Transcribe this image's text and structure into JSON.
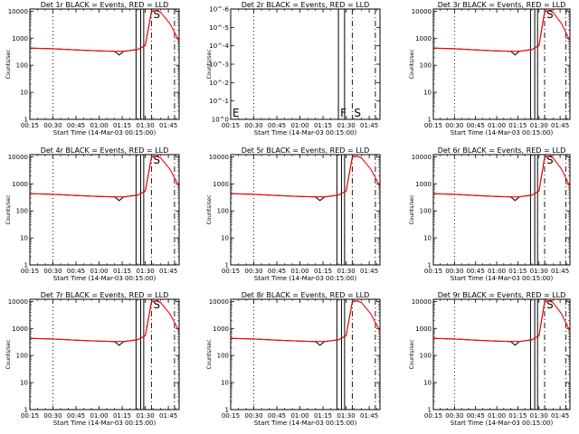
{
  "figure": {
    "time_tick_labels": [
      "00:15",
      "00:30",
      "00:45",
      "01:00",
      "01:15",
      "01:30",
      "01:45"
    ],
    "xlabel": "Start Time (14-Mar-03 00:15:00)",
    "ylabel": "Counts/sec",
    "log_tick_labels": [
      "1",
      "10",
      "100",
      "1000",
      "10000"
    ],
    "colors": {
      "events": "#000000",
      "lld": "#ff0000"
    }
  },
  "chart_data": [
    {
      "type": "line",
      "panel": "det1r",
      "title": "Det 1r BLACK = Events, RED = LLD",
      "xlabel": "Start Time (14-Mar-03 00:15:00)",
      "ylabel": "Counts/sec",
      "xlim": [
        "00:15",
        "01:52"
      ],
      "ylim": [
        1,
        12000
      ],
      "yscale": "log",
      "x": [
        "00:15",
        "00:30",
        "00:45",
        "01:00",
        "01:10",
        "01:13",
        "01:16",
        "01:25",
        "01:30",
        "01:34",
        "01:37",
        "01:40",
        "01:46",
        "01:52"
      ],
      "series": [
        {
          "name": "Events",
          "values": [
            430,
            410,
            370,
            340,
            330,
            240,
            330,
            380,
            540,
            9500,
            10500,
            9000,
            null,
            null
          ]
        },
        {
          "name": "LLD",
          "values": [
            430,
            410,
            370,
            340,
            330,
            330,
            330,
            380,
            540,
            9500,
            10500,
            9000,
            3500,
            800
          ]
        }
      ],
      "markers": [
        {
          "label": "",
          "time": "00:30",
          "style": "dotted"
        },
        {
          "label": "",
          "time": "01:24",
          "style": "solid"
        },
        {
          "label": "",
          "time": "01:27",
          "style": "solid"
        },
        {
          "label": "",
          "time": "01:29",
          "style": "solid"
        },
        {
          "label": "S",
          "time": "01:34",
          "style": "dashdot"
        },
        {
          "label": "",
          "time": "01:49",
          "style": "dashdot"
        }
      ]
    },
    {
      "type": "line",
      "panel": "det2r",
      "title": "Det 2r BLACK = Events, RED = LLD",
      "xlabel": "Start Time (14-Mar-03 00:15:00)",
      "ylabel": "Counts/sec",
      "xlim": [
        "00:15",
        "01:52"
      ],
      "ylim": [
        1,
        1e-06
      ],
      "y_tick_labels": [
        "10^0",
        "10^-1",
        "10^-2",
        "10^-3",
        "10^-4",
        "10^-5",
        "10^-6"
      ],
      "x": [],
      "series": [],
      "markers": [
        {
          "label": "E",
          "time": "00:15",
          "style": "none"
        },
        {
          "label": "",
          "time": "00:30",
          "style": "dotted"
        },
        {
          "label": "F",
          "time": "01:25",
          "style": "solid"
        },
        {
          "label": "",
          "time": "01:29",
          "style": "solid"
        },
        {
          "label": "S",
          "time": "01:34",
          "style": "dashdot"
        },
        {
          "label": "",
          "time": "01:49",
          "style": "dashdot"
        }
      ]
    },
    {
      "type": "line",
      "panel": "det3r",
      "title": "Det 3r BLACK = Events, RED = LLD",
      "xlabel": "Start Time (14-Mar-03 00:15:00)",
      "ylabel": "Counts/sec",
      "xlim": [
        "00:15",
        "01:52"
      ],
      "ylim": [
        1,
        12000
      ],
      "yscale": "log",
      "x": [
        "00:15",
        "00:30",
        "00:45",
        "01:00",
        "01:10",
        "01:13",
        "01:16",
        "01:25",
        "01:30",
        "01:34",
        "01:37",
        "01:40",
        "01:46",
        "01:52"
      ],
      "series": [
        {
          "name": "Events",
          "values": [
            430,
            410,
            370,
            340,
            330,
            240,
            330,
            380,
            540,
            9500,
            10500,
            9000,
            null,
            null
          ]
        },
        {
          "name": "LLD",
          "values": [
            430,
            410,
            370,
            340,
            330,
            330,
            330,
            380,
            540,
            9500,
            10500,
            9000,
            3500,
            800
          ]
        }
      ],
      "markers": [
        {
          "label": "",
          "time": "00:30",
          "style": "dotted"
        },
        {
          "label": "",
          "time": "01:24",
          "style": "solid"
        },
        {
          "label": "",
          "time": "01:27",
          "style": "solid"
        },
        {
          "label": "",
          "time": "01:29",
          "style": "solid"
        },
        {
          "label": "S",
          "time": "01:34",
          "style": "dashdot"
        },
        {
          "label": "",
          "time": "01:49",
          "style": "dashdot"
        }
      ]
    },
    {
      "type": "line",
      "panel": "det4r",
      "title": "Det 4r BLACK = Events, RED = LLD",
      "xlabel": "Start Time (14-Mar-03 00:15:00)",
      "ylabel": "Counts/sec",
      "xlim": [
        "00:15",
        "01:52"
      ],
      "ylim": [
        1,
        12000
      ],
      "yscale": "log",
      "x": [
        "00:15",
        "00:30",
        "00:45",
        "01:00",
        "01:10",
        "01:13",
        "01:16",
        "01:25",
        "01:30",
        "01:34",
        "01:37",
        "01:40",
        "01:46",
        "01:52"
      ],
      "series": [
        {
          "name": "Events",
          "values": [
            430,
            410,
            370,
            340,
            330,
            240,
            330,
            380,
            540,
            9500,
            10500,
            9000,
            null,
            null
          ]
        },
        {
          "name": "LLD",
          "values": [
            430,
            410,
            370,
            340,
            330,
            330,
            330,
            380,
            540,
            9500,
            10500,
            9000,
            3500,
            800
          ]
        }
      ],
      "markers": [
        {
          "label": "",
          "time": "00:30",
          "style": "dotted"
        },
        {
          "label": "",
          "time": "01:24",
          "style": "solid"
        },
        {
          "label": "",
          "time": "01:27",
          "style": "solid"
        },
        {
          "label": "",
          "time": "01:29",
          "style": "solid"
        },
        {
          "label": "S",
          "time": "01:34",
          "style": "dashdot"
        },
        {
          "label": "",
          "time": "01:49",
          "style": "dashdot"
        }
      ]
    },
    {
      "type": "line",
      "panel": "det5r",
      "title": "Det 5r BLACK = Events, RED = LLD",
      "xlabel": "Start Time (14-Mar-03 00:15:00)",
      "ylabel": "Counts/sec",
      "xlim": [
        "00:15",
        "01:52"
      ],
      "ylim": [
        1,
        12000
      ],
      "yscale": "log",
      "x": [
        "00:15",
        "00:30",
        "00:45",
        "01:00",
        "01:10",
        "01:13",
        "01:16",
        "01:25",
        "01:30",
        "01:34",
        "01:37",
        "01:40",
        "01:46",
        "01:52"
      ],
      "series": [
        {
          "name": "Events",
          "values": [
            430,
            410,
            370,
            340,
            330,
            240,
            330,
            380,
            540,
            9500,
            10500,
            9000,
            null,
            null
          ]
        },
        {
          "name": "LLD",
          "values": [
            430,
            410,
            370,
            340,
            330,
            330,
            330,
            380,
            540,
            9500,
            10500,
            9000,
            3500,
            800
          ]
        }
      ],
      "markers": [
        {
          "label": "",
          "time": "00:30",
          "style": "dotted"
        },
        {
          "label": "",
          "time": "01:24",
          "style": "solid"
        },
        {
          "label": "",
          "time": "01:27",
          "style": "solid"
        },
        {
          "label": "",
          "time": "01:29",
          "style": "solid"
        },
        {
          "label": "",
          "time": "01:34",
          "style": "dashdot"
        },
        {
          "label": "",
          "time": "01:49",
          "style": "dashdot"
        }
      ]
    },
    {
      "type": "line",
      "panel": "det6r",
      "title": "Det 6r BLACK = Events, RED = LLD",
      "xlabel": "Start Time (14-Mar-03 00:15:00)",
      "ylabel": "Counts/sec",
      "xlim": [
        "00:15",
        "01:52"
      ],
      "ylim": [
        1,
        12000
      ],
      "yscale": "log",
      "x": [
        "00:15",
        "00:30",
        "00:45",
        "01:00",
        "01:10",
        "01:13",
        "01:16",
        "01:25",
        "01:30",
        "01:34",
        "01:37",
        "01:40",
        "01:46",
        "01:52"
      ],
      "series": [
        {
          "name": "Events",
          "values": [
            430,
            410,
            370,
            340,
            330,
            240,
            330,
            380,
            540,
            9500,
            10500,
            9000,
            null,
            null
          ]
        },
        {
          "name": "LLD",
          "values": [
            430,
            410,
            370,
            340,
            330,
            330,
            330,
            380,
            540,
            9500,
            10500,
            9000,
            3500,
            800
          ]
        }
      ],
      "markers": [
        {
          "label": "",
          "time": "00:30",
          "style": "dotted"
        },
        {
          "label": "",
          "time": "01:24",
          "style": "solid"
        },
        {
          "label": "",
          "time": "01:27",
          "style": "solid"
        },
        {
          "label": "",
          "time": "01:29",
          "style": "solid"
        },
        {
          "label": "S",
          "time": "01:34",
          "style": "dashdot"
        },
        {
          "label": "",
          "time": "01:49",
          "style": "dashdot"
        }
      ]
    },
    {
      "type": "line",
      "panel": "det7r",
      "title": "Det 7r BLACK = Events, RED = LLD",
      "xlabel": "Start Time (14-Mar-03 00:15:00)",
      "ylabel": "Counts/sec",
      "xlim": [
        "00:15",
        "01:52"
      ],
      "ylim": [
        1,
        12000
      ],
      "yscale": "log",
      "x": [
        "00:15",
        "00:30",
        "00:45",
        "01:00",
        "01:10",
        "01:13",
        "01:16",
        "01:25",
        "01:30",
        "01:34",
        "01:37",
        "01:40",
        "01:46",
        "01:52"
      ],
      "series": [
        {
          "name": "Events",
          "values": [
            430,
            410,
            370,
            340,
            330,
            240,
            330,
            380,
            540,
            9500,
            10500,
            9000,
            null,
            null
          ]
        },
        {
          "name": "LLD",
          "values": [
            430,
            410,
            370,
            340,
            330,
            330,
            330,
            380,
            540,
            9500,
            10500,
            9000,
            3500,
            800
          ]
        }
      ],
      "markers": [
        {
          "label": "",
          "time": "00:30",
          "style": "dotted"
        },
        {
          "label": "",
          "time": "01:24",
          "style": "solid"
        },
        {
          "label": "",
          "time": "01:27",
          "style": "solid"
        },
        {
          "label": "",
          "time": "01:29",
          "style": "solid"
        },
        {
          "label": "S",
          "time": "01:34",
          "style": "dashdot"
        },
        {
          "label": "",
          "time": "01:49",
          "style": "dashdot"
        }
      ]
    },
    {
      "type": "line",
      "panel": "det8r",
      "title": "Det 8r BLACK = Events, RED = LLD",
      "xlabel": "Start Time (14-Mar-03 00:15:00)",
      "ylabel": "Counts/sec",
      "xlim": [
        "00:15",
        "01:52"
      ],
      "ylim": [
        1,
        12000
      ],
      "yscale": "log",
      "x": [
        "00:15",
        "00:30",
        "00:45",
        "01:00",
        "01:10",
        "01:13",
        "01:16",
        "01:25",
        "01:30",
        "01:34",
        "01:37",
        "01:40",
        "01:46",
        "01:52"
      ],
      "series": [
        {
          "name": "Events",
          "values": [
            430,
            410,
            370,
            340,
            330,
            240,
            330,
            380,
            540,
            9500,
            10500,
            9000,
            null,
            null
          ]
        },
        {
          "name": "LLD",
          "values": [
            430,
            410,
            370,
            340,
            330,
            330,
            330,
            380,
            540,
            9500,
            10500,
            9000,
            3500,
            800
          ]
        }
      ],
      "markers": [
        {
          "label": "",
          "time": "00:30",
          "style": "dotted"
        },
        {
          "label": "",
          "time": "01:24",
          "style": "solid"
        },
        {
          "label": "",
          "time": "01:27",
          "style": "solid"
        },
        {
          "label": "",
          "time": "01:29",
          "style": "solid"
        },
        {
          "label": "",
          "time": "01:34",
          "style": "dashdot"
        },
        {
          "label": "",
          "time": "01:49",
          "style": "dashdot"
        }
      ]
    },
    {
      "type": "line",
      "panel": "det9r",
      "title": "Det 9r BLACK = Events, RED = LLD",
      "xlabel": "Start Time (14-Mar-03 00:15:00)",
      "ylabel": "Counts/sec",
      "xlim": [
        "00:15",
        "01:52"
      ],
      "ylim": [
        1,
        12000
      ],
      "yscale": "log",
      "x": [
        "00:15",
        "00:30",
        "00:45",
        "01:00",
        "01:10",
        "01:13",
        "01:16",
        "01:25",
        "01:30",
        "01:34",
        "01:37",
        "01:40",
        "01:46",
        "01:52"
      ],
      "series": [
        {
          "name": "Events",
          "values": [
            430,
            410,
            370,
            340,
            330,
            240,
            330,
            380,
            540,
            9500,
            10500,
            9000,
            null,
            null
          ]
        },
        {
          "name": "LLD",
          "values": [
            430,
            410,
            370,
            340,
            330,
            330,
            330,
            380,
            540,
            9500,
            10500,
            9000,
            3500,
            800
          ]
        }
      ],
      "markers": [
        {
          "label": "",
          "time": "00:30",
          "style": "dotted"
        },
        {
          "label": "",
          "time": "01:24",
          "style": "solid"
        },
        {
          "label": "",
          "time": "01:27",
          "style": "solid"
        },
        {
          "label": "",
          "time": "01:29",
          "style": "solid"
        },
        {
          "label": "S",
          "time": "01:34",
          "style": "dashdot"
        },
        {
          "label": "",
          "time": "01:49",
          "style": "dashdot"
        }
      ]
    }
  ]
}
